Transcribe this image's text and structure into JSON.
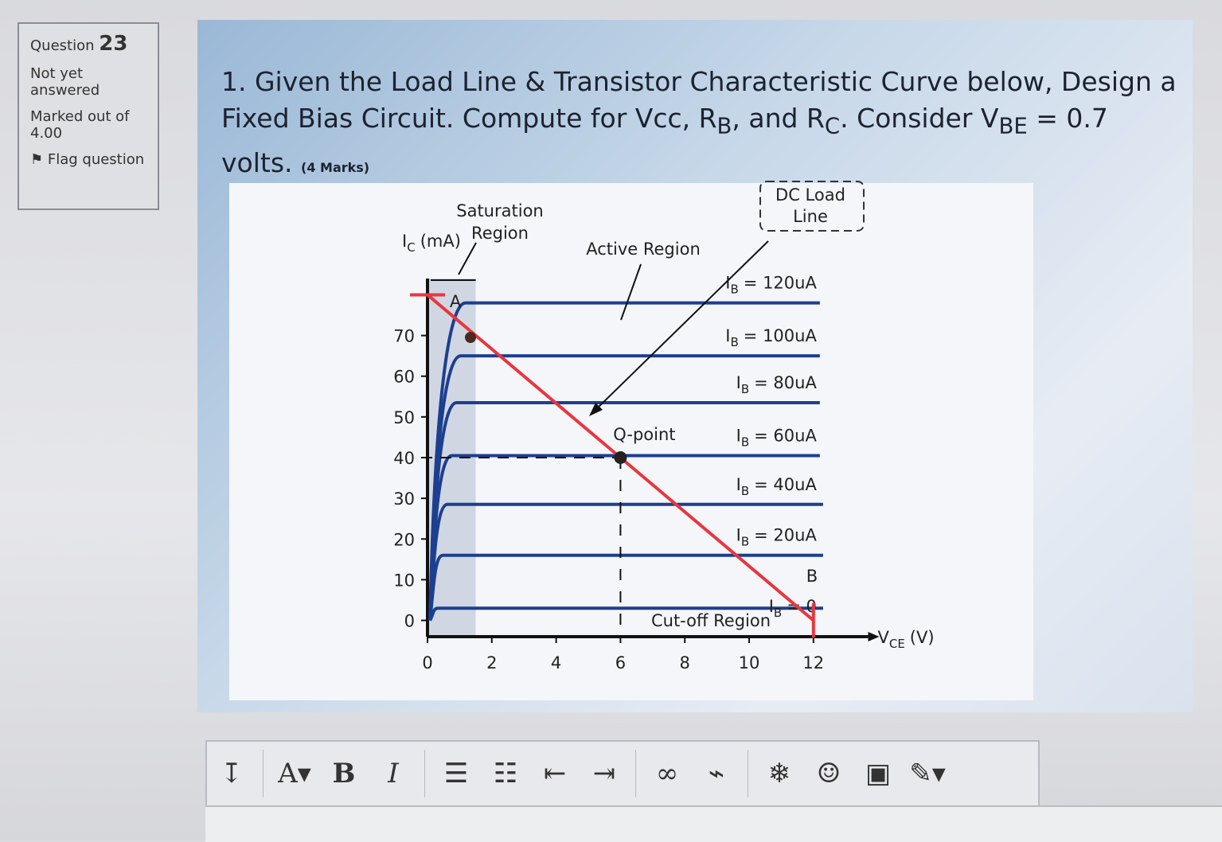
{
  "sidebar": {
    "question_label": "Question",
    "question_number": "23",
    "status": "Not yet answered",
    "marked_label": "Marked out of",
    "marks": "4.00",
    "flag": "Flag question"
  },
  "question": {
    "parts": [
      "1. Given the Load Line & Transistor Characteristic Curve below, Design a Fixed Bias Circuit. Compute for Vcc, R",
      "B",
      ", and R",
      "C",
      ". Consider V",
      "BE",
      " = 0.7 volts."
    ],
    "marks": "(4 Marks)"
  },
  "figure": {
    "y_label": {
      "name": "I",
      "sub": "C",
      "unit": "(mA)"
    },
    "x_label": {
      "name": "V",
      "sub": "CE",
      "unit": "(V)"
    },
    "xlim": [
      0,
      13.7
    ],
    "ylim": [
      -4,
      84
    ],
    "xticks": [
      0,
      2,
      4,
      6,
      8,
      10,
      12
    ],
    "yticks": [
      0,
      10,
      20,
      30,
      40,
      50,
      60,
      70
    ],
    "curves": [
      {
        "name": "I",
        "sub": "B",
        "text": "= 120uA",
        "level": 78
      },
      {
        "name": "I",
        "sub": "B",
        "text": "= 100uA",
        "level": 65
      },
      {
        "name": "I",
        "sub": "B",
        "text": "= 80uA",
        "level": 53.5
      },
      {
        "name": "I",
        "sub": "B",
        "text": "= 60uA",
        "level": 40.5
      },
      {
        "name": "I",
        "sub": "B",
        "text": "= 40uA",
        "level": 28.5
      },
      {
        "name": "I",
        "sub": "B",
        "text": "= 20uA",
        "level": 16
      },
      {
        "name": "I",
        "sub": "B",
        "text": "= 0",
        "level": 3
      }
    ],
    "load_line": {
      "x": [
        0,
        12
      ],
      "y": [
        80,
        0
      ],
      "color": "#e8363f"
    },
    "q_point": {
      "x": 6,
      "y": 40
    },
    "annotations": {
      "saturation": "Saturation Region",
      "active": "Active Region",
      "load_line": "DC Load Line",
      "q_point": "Q-point",
      "cutoff": "Cut-off Region",
      "a": "A",
      "b": "B"
    }
  },
  "toolbar": {
    "font": "A",
    "bold": "B",
    "italic": "I"
  }
}
